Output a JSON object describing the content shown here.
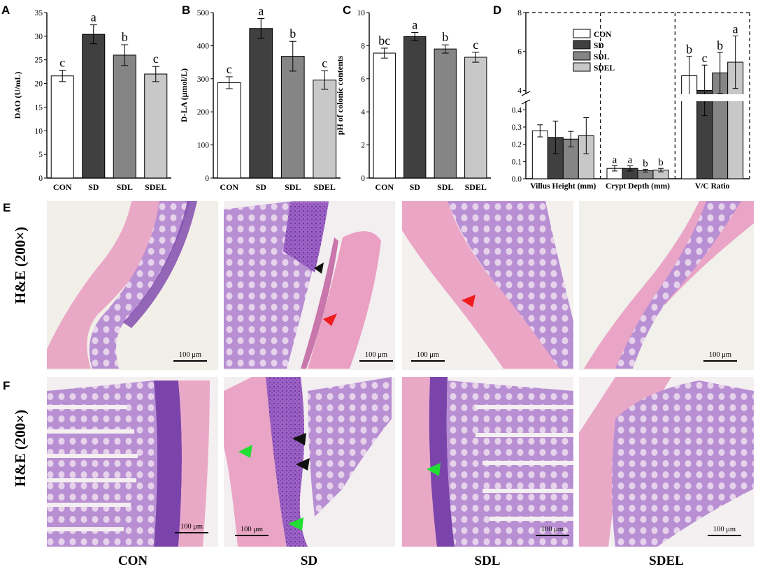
{
  "colors": {
    "CON": "#ffffff",
    "SD": "#404040",
    "SDL": "#858585",
    "SDEL": "#c8c8c8",
    "arrow_black": "#111111",
    "arrow_red": "#ee1c1c",
    "arrow_green": "#22dd33"
  },
  "chart_data": [
    {
      "panel": "A",
      "type": "bar",
      "categories": [
        "CON",
        "SD",
        "SDL",
        "SDEL"
      ],
      "values": [
        21.6,
        30.4,
        26.0,
        22.0
      ],
      "errors": [
        1.2,
        2.0,
        2.2,
        1.6
      ],
      "letters": [
        "c",
        "a",
        "b",
        "c"
      ],
      "ylabel": "DAO (U/mL)",
      "ylim": [
        0,
        35
      ],
      "yticks": [
        "0",
        "5",
        "10",
        "15",
        "20",
        "25",
        "30",
        "35"
      ]
    },
    {
      "panel": "B",
      "type": "bar",
      "categories": [
        "CON",
        "SD",
        "SDL",
        "SDEL"
      ],
      "values": [
        288,
        452,
        368,
        296
      ],
      "errors": [
        18,
        30,
        45,
        28
      ],
      "letters": [
        "c",
        "a",
        "b",
        "c"
      ],
      "ylabel": "D-LA (μmol/L)",
      "ylim": [
        0,
        500
      ],
      "yticks": [
        "0",
        "100",
        "200",
        "300",
        "400",
        "500"
      ]
    },
    {
      "panel": "C",
      "type": "bar",
      "categories": [
        "CON",
        "SD",
        "SDL",
        "SDEL"
      ],
      "values": [
        7.55,
        8.55,
        7.8,
        7.3
      ],
      "errors": [
        0.3,
        0.25,
        0.25,
        0.3
      ],
      "letters": [
        "bc",
        "a",
        "b",
        "c"
      ],
      "ylabel": "pH of colonic contents",
      "ylim": [
        0,
        10
      ],
      "yticks": [
        "0",
        "2",
        "4",
        "6",
        "8",
        "10"
      ]
    },
    {
      "panel": "D",
      "type": "bar",
      "groups": [
        "Villus Height (mm)",
        "Crypt Depth (mm)",
        "V/C Ratio"
      ],
      "series_names": [
        "CON",
        "SD",
        "SDL",
        "SDEL"
      ],
      "groups_values": [
        [
          0.278,
          0.24,
          0.23,
          0.25
        ],
        [
          0.06,
          0.06,
          0.047,
          0.05
        ],
        [
          4.75,
          4.0,
          4.9,
          5.45
        ]
      ],
      "groups_errors": [
        [
          0.035,
          0.095,
          0.045,
          0.105
        ],
        [
          0.015,
          0.015,
          0.008,
          0.01
        ],
        [
          1.0,
          1.3,
          1.05,
          1.35
        ]
      ],
      "groups_letters": [
        [
          "",
          "",
          "",
          ""
        ],
        [
          "a",
          "a",
          "b",
          "b"
        ],
        [
          "b",
          "c",
          "b",
          "a"
        ]
      ],
      "yticks_low": [
        "0.0",
        "0.1",
        "0.2",
        "0.3",
        "0.4"
      ],
      "yticks_high": [
        "4",
        "6",
        "8"
      ],
      "ybreak": [
        0.45,
        3.8
      ]
    }
  ],
  "rows": [
    {
      "panel": "E",
      "label": "H&E (200×)",
      "scale_bar": "100 μm"
    },
    {
      "panel": "F",
      "label": "H&E (200×)",
      "scale_bar": "100 μm"
    }
  ],
  "columns": [
    "CON",
    "SD",
    "SDL",
    "SDEL"
  ]
}
